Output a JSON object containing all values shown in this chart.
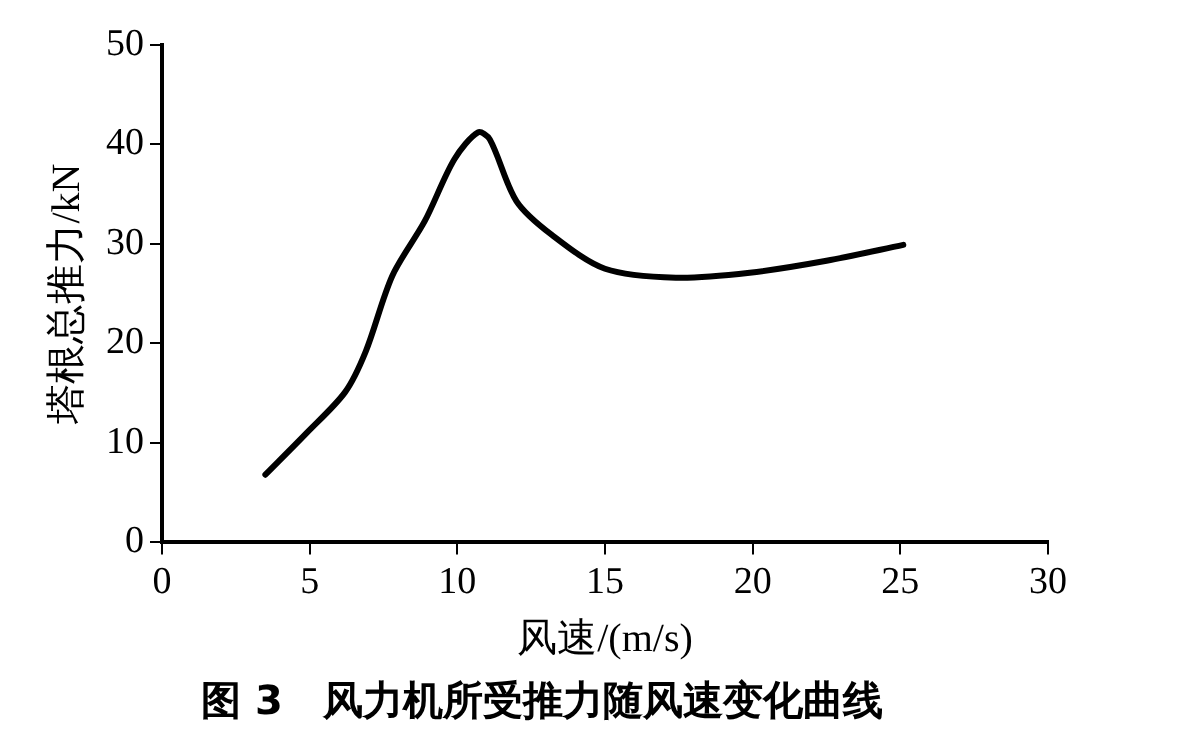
{
  "chart_data": {
    "type": "line",
    "xlabel": "风速/(m/s)",
    "ylabel": "塔根总推力/kN",
    "title": "图 3　风力机所受推力随风速变化曲线",
    "xlim": [
      0,
      30
    ],
    "xticks": [
      0,
      5,
      10,
      15,
      20,
      25,
      30
    ],
    "ylim": [
      0,
      50
    ],
    "yticks": [
      0,
      10,
      20,
      30,
      40,
      50
    ],
    "grid": false,
    "legend": false,
    "series": [
      {
        "color": "#000000",
        "x": [
          3.5,
          4.9,
          6.2,
          6.9,
          7.8,
          8.9,
          9.9,
          10.7,
          11.1,
          12,
          13.2,
          15,
          17.4,
          19.9,
          22.5,
          25.1
        ],
        "values": [
          6.8,
          11,
          15.1,
          19.2,
          26.8,
          32.3,
          38.5,
          41.2,
          40.5,
          34.3,
          30.9,
          27.5,
          26.6,
          27.1,
          28.3,
          29.9
        ]
      }
    ]
  }
}
